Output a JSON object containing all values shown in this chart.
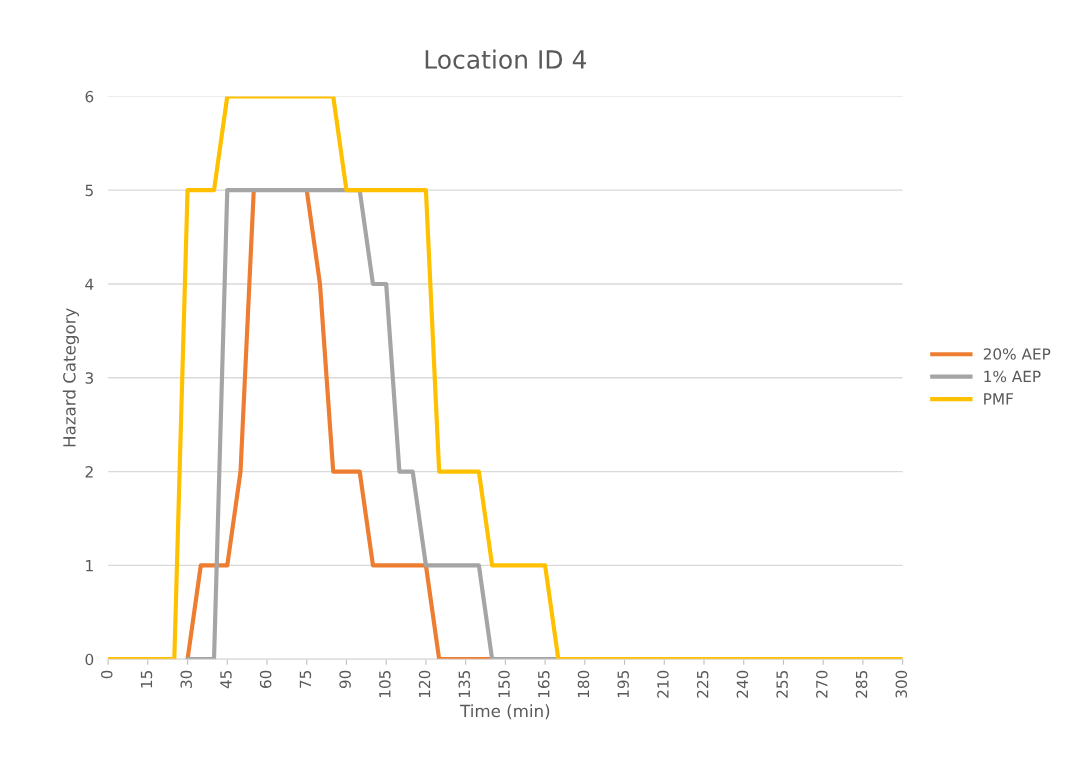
{
  "chart_data": {
    "type": "line",
    "title": "Location ID 4",
    "xlabel": "Time (min)",
    "ylabel": "Hazard Category",
    "x": [
      0,
      5,
      10,
      15,
      20,
      25,
      30,
      35,
      40,
      45,
      50,
      55,
      60,
      65,
      70,
      75,
      80,
      85,
      90,
      95,
      100,
      105,
      110,
      115,
      120,
      125,
      130,
      135,
      140,
      145,
      150,
      155,
      160,
      165,
      170,
      175,
      180,
      185,
      190,
      195,
      200,
      205,
      210,
      215,
      220,
      225,
      230,
      235,
      240,
      245,
      250,
      255,
      260,
      265,
      270,
      275,
      280,
      285,
      290,
      295,
      300
    ],
    "series": [
      {
        "name": "20% AEP",
        "color": "#ed7d31",
        "values": [
          null,
          null,
          null,
          null,
          null,
          null,
          0,
          1,
          1,
          1,
          2,
          5,
          null,
          null,
          null,
          5,
          4,
          2,
          2,
          2,
          1,
          1,
          1,
          1,
          1,
          0,
          0,
          0,
          0,
          0,
          null,
          null,
          null,
          null,
          null,
          null,
          null,
          null,
          null,
          null,
          null,
          null,
          null,
          null,
          null,
          null,
          null,
          null,
          null,
          null,
          null,
          null,
          null,
          null,
          null,
          null,
          null,
          null,
          null,
          null,
          null
        ]
      },
      {
        "name": "1% AEP",
        "color": "#a5a5a5",
        "values": [
          null,
          null,
          null,
          null,
          null,
          null,
          0,
          0,
          0,
          5,
          5,
          5,
          5,
          5,
          5,
          5,
          5,
          5,
          5,
          5,
          4,
          4,
          2,
          2,
          1,
          1,
          1,
          1,
          1,
          0,
          0,
          0,
          0,
          0,
          0,
          null,
          null,
          null,
          null,
          null,
          null,
          null,
          null,
          null,
          null,
          null,
          null,
          null,
          null,
          null,
          null,
          null,
          null,
          null,
          null,
          null,
          null,
          null,
          null,
          null,
          null
        ]
      },
      {
        "name": "PMF",
        "color": "#ffc000",
        "values": [
          0,
          0,
          0,
          0,
          0,
          0,
          5,
          5,
          5,
          6,
          6,
          6,
          6,
          6,
          6,
          6,
          6,
          6,
          5,
          5,
          5,
          5,
          5,
          5,
          5,
          2,
          2,
          2,
          2,
          1,
          1,
          1,
          1,
          1,
          0,
          0,
          0,
          0,
          0,
          0,
          0,
          0,
          0,
          0,
          0,
          0,
          0,
          0,
          0,
          0,
          0,
          0,
          0,
          0,
          0,
          0,
          0,
          0,
          0,
          0,
          0
        ]
      }
    ],
    "xlim": [
      0,
      300
    ],
    "xticks": [
      0,
      15,
      30,
      45,
      60,
      75,
      90,
      105,
      120,
      135,
      150,
      165,
      180,
      195,
      210,
      225,
      240,
      255,
      270,
      285,
      300
    ],
    "ylim": [
      0,
      6
    ],
    "yticks": [
      0,
      1,
      2,
      3,
      4,
      5,
      6
    ],
    "grid": "y",
    "legend": "right",
    "marker": "none",
    "line_style": "solid"
  }
}
